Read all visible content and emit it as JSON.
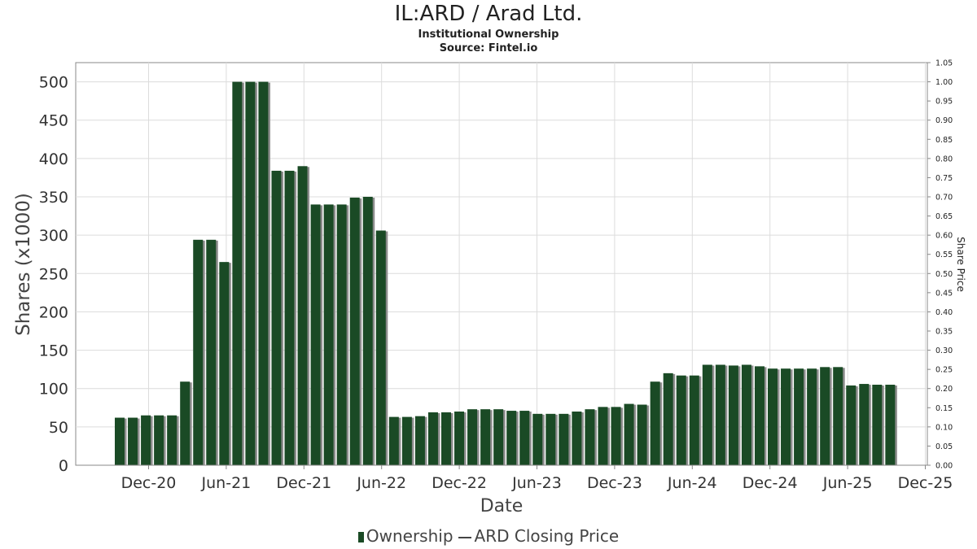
{
  "title": "IL:ARD / Arad Ltd.",
  "subtitle_1": "Institutional Ownership",
  "subtitle_2": "Source: Fintel.io",
  "legend": {
    "series_1": "Ownership",
    "series_2": "ARD Closing Price"
  },
  "colors": {
    "bar": "#1a4a25",
    "bar_shadow": "#8c8c8c",
    "grid": "#dcdcdc",
    "axis": "#888888"
  },
  "chart_data": {
    "type": "bar",
    "xlabel": "Date",
    "ylabel": "Shares (x1000)",
    "y2label": "Share Price",
    "ylim": [
      0,
      525
    ],
    "y2lim": [
      0,
      1.05
    ],
    "yticks": [
      0,
      50,
      100,
      150,
      200,
      250,
      300,
      350,
      400,
      450,
      500
    ],
    "y2ticks": [
      "0.00",
      "0.05",
      "0.10",
      "0.15",
      "0.20",
      "0.25",
      "0.30",
      "0.35",
      "0.40",
      "0.45",
      "0.50",
      "0.55",
      "0.60",
      "0.65",
      "0.70",
      "0.75",
      "0.80",
      "0.85",
      "0.90",
      "0.95",
      "1.00",
      "1.05"
    ],
    "xticks": [
      "Dec-20",
      "Jun-21",
      "Dec-21",
      "Jun-22",
      "Dec-22",
      "Jun-23",
      "Dec-23",
      "Jun-24",
      "Dec-24",
      "Jun-25",
      "Dec-25"
    ],
    "grid": true,
    "legend_position": "bottom-center",
    "series": [
      {
        "name": "Ownership",
        "values": [
          62,
          62,
          65,
          65,
          65,
          109,
          294,
          294,
          265,
          500,
          500,
          500,
          384,
          384,
          390,
          340,
          340,
          340,
          349,
          350,
          306,
          63,
          63,
          64,
          69,
          69,
          70,
          73,
          73,
          73,
          71,
          71,
          67,
          67,
          67,
          70,
          73,
          76,
          76,
          80,
          79,
          109,
          120,
          117,
          117,
          131,
          131,
          130,
          131,
          129,
          126,
          126,
          126,
          126,
          128,
          128,
          104,
          106,
          105,
          105
        ]
      },
      {
        "name": "ARD Closing Price",
        "values": []
      }
    ]
  }
}
